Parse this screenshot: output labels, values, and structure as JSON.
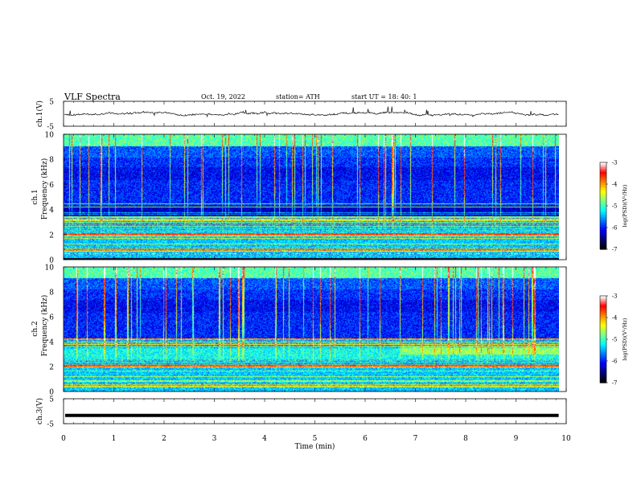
{
  "header": {
    "title": "VLF  Spectra",
    "date": "Oct. 19, 2022",
    "station": "station= ATH",
    "start": "start  UT  =    18: 40: 1"
  },
  "colors": {
    "colormap": [
      "#000000",
      "#00007f",
      "#0000ff",
      "#0080ff",
      "#00ffff",
      "#80ff80",
      "#ffff00",
      "#ff8000",
      "#ff0000",
      "#ffffff"
    ],
    "trace": "#111111",
    "axis": "#000000"
  },
  "chart_data": [
    {
      "type": "line",
      "name": "ch1-time-series",
      "ylabel": "ch.1(V)",
      "ylim": [
        -5,
        5
      ],
      "yticks": [
        -5,
        5
      ],
      "xlim": [
        0,
        10
      ],
      "baseline": 0,
      "description_of_values": "noisy waveform near 0 V with small spikes"
    },
    {
      "type": "heatmap",
      "name": "ch1-spectrogram",
      "ylabel_top": "ch.1",
      "ylabel": "Frequency  (kHz)",
      "ylim": [
        0,
        10
      ],
      "yticks": [
        0,
        2,
        4,
        6,
        8,
        10
      ],
      "xlim": [
        0,
        9.85
      ],
      "colorbar": {
        "label": "log(PSD)(V²/Hz)",
        "range": [
          -7,
          -3
        ],
        "ticks": [
          -3,
          -4,
          -5,
          -6,
          -7
        ]
      }
    },
    {
      "type": "heatmap",
      "name": "ch2-spectrogram",
      "ylabel_top": "ch.2",
      "ylabel": "Frequency  (kHz)",
      "ylim": [
        0,
        10
      ],
      "yticks": [
        0,
        2,
        4,
        6,
        8,
        10
      ],
      "xlim": [
        0,
        9.85
      ],
      "colorbar": {
        "label": "log(PSD)(V²/Hz)",
        "range": [
          -7,
          -3
        ],
        "ticks": [
          -3,
          -4,
          -5,
          -6,
          -7
        ]
      }
    },
    {
      "type": "line",
      "name": "ch3-time-series",
      "ylabel": "ch.3(V)",
      "ylim": [
        -5,
        5
      ],
      "yticks": [
        -5,
        5
      ],
      "xlim": [
        0,
        10
      ],
      "baseline": -1.7
    }
  ],
  "xaxis": {
    "label": "Time  (min)",
    "ticks": [
      0,
      1,
      2,
      3,
      4,
      5,
      6,
      7,
      8,
      9,
      10
    ],
    "range": [
      0,
      10
    ]
  }
}
